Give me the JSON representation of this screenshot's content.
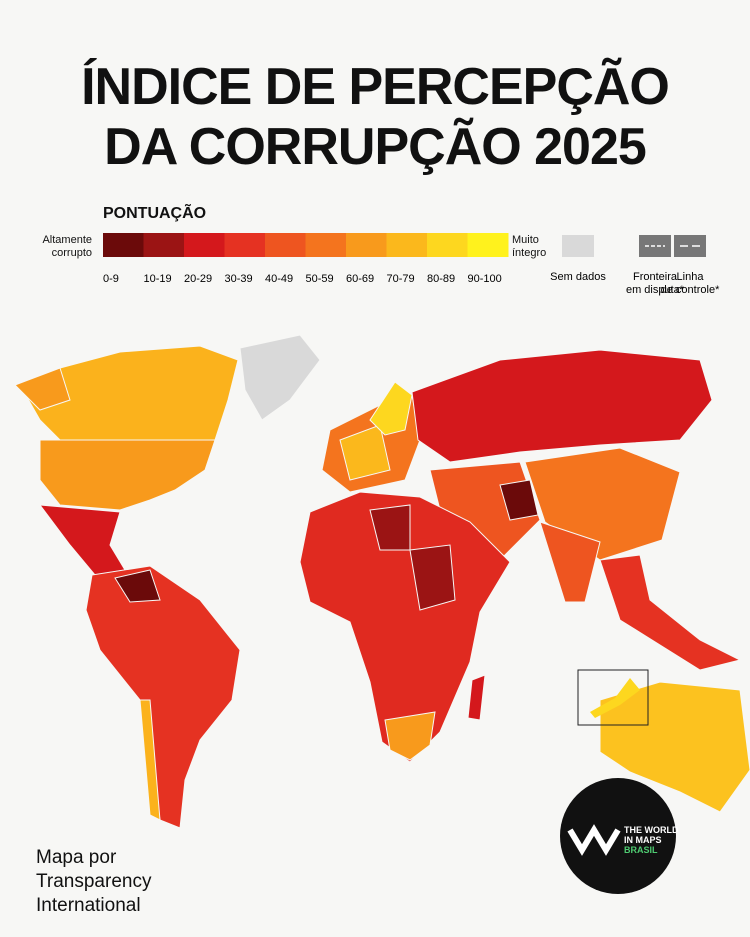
{
  "header": {
    "title_lines": [
      "ÍNDICE DE PERCEPÇÃO",
      "DA CORRUPÇÃO 2025"
    ]
  },
  "legend": {
    "title": "PONTUAÇÃO",
    "low_label": "Altamente corrupto",
    "high_label": "Muito íntegro",
    "bins": [
      {
        "label": "0-9",
        "color": "#6b0a0a"
      },
      {
        "label": "10-19",
        "color": "#9b1414"
      },
      {
        "label": "20-29",
        "color": "#d4181c"
      },
      {
        "label": "30-39",
        "color": "#e53222"
      },
      {
        "label": "40-49",
        "color": "#ee5520"
      },
      {
        "label": "50-59",
        "color": "#f4741e"
      },
      {
        "label": "60-69",
        "color": "#f89a1c"
      },
      {
        "label": "70-79",
        "color": "#fbb81c"
      },
      {
        "label": "80-89",
        "color": "#fdd71f"
      },
      {
        "label": "90-100",
        "color": "#fff21d"
      }
    ],
    "extras": [
      {
        "label": "Sem dados"
      },
      {
        "label": "Fronteira em disputa*"
      },
      {
        "label": "Linha de controle*"
      }
    ]
  },
  "credit": {
    "lines": [
      "Mapa por",
      "Transparency",
      "International"
    ]
  },
  "logo": {
    "lines": [
      "THE WORLD",
      "IN MAPS",
      "BRASIL"
    ]
  }
}
